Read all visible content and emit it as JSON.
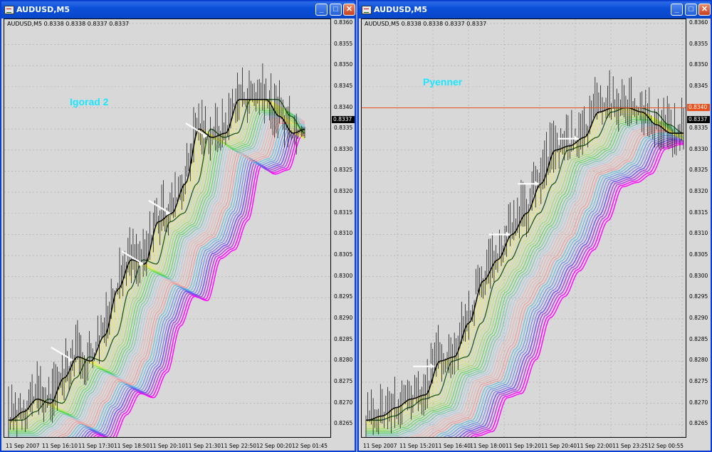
{
  "windows": [
    {
      "title": "AUDUSD,M5",
      "info": "AUDUSD,M5  0.8338 0.8338 0.8337 0.8337",
      "chart_label": "Igorad 2",
      "current_price": "0.8337",
      "y_ticks": [
        "0.8360",
        "0.8355",
        "0.8350",
        "0.8345",
        "0.8340",
        "0.8335",
        "0.8330",
        "0.8325",
        "0.8320",
        "0.8315",
        "0.8310",
        "0.8305",
        "0.8300",
        "0.8295",
        "0.8290",
        "0.8285",
        "0.8280",
        "0.8275",
        "0.8270",
        "0.8265"
      ],
      "x_ticks": [
        "11 Sep 2007",
        "11 Sep 16:10",
        "11 Sep 17:30",
        "11 Sep 18:50",
        "11 Sep 20:10",
        "11 Sep 21:30",
        "11 Sep 22:50",
        "12 Sep 00:20",
        "12 Sep 01:45"
      ]
    },
    {
      "title": "AUDUSD,M5",
      "info": "AUDUSD,M5  0.8338 0.8338 0.8337 0.8337",
      "chart_label": "Pyenner",
      "current_price": "0.8337",
      "level_price": "0.8340",
      "y_ticks": [
        "0.8360",
        "0.8355",
        "0.8350",
        "0.8345",
        "0.8340",
        "0.8335",
        "0.8330",
        "0.8325",
        "0.8320",
        "0.8315",
        "0.8310",
        "0.8305",
        "0.8300",
        "0.8295",
        "0.8290",
        "0.8285",
        "0.8280",
        "0.8275",
        "0.8270",
        "0.8265"
      ],
      "x_ticks": [
        "11 Sep 2007",
        "11 Sep 15:20",
        "11 Sep 16:40",
        "11 Sep 18:00",
        "11 Sep 19:20",
        "11 Sep 20:40",
        "11 Sep 22:00",
        "11 Sep 23:25",
        "12 Sep 00:55"
      ]
    }
  ],
  "chart_data": [
    {
      "type": "line",
      "title": "Igorad 2",
      "symbol": "AUDUSD",
      "timeframe": "M5",
      "ylim": [
        0.8262,
        0.8361
      ],
      "price_points": [
        [
          0,
          0.8266
        ],
        [
          8,
          0.8268
        ],
        [
          16,
          0.8271
        ],
        [
          24,
          0.827
        ],
        [
          32,
          0.8276
        ],
        [
          40,
          0.8281
        ],
        [
          48,
          0.828
        ],
        [
          56,
          0.8286
        ],
        [
          64,
          0.8297
        ],
        [
          72,
          0.8304
        ],
        [
          80,
          0.8303
        ],
        [
          88,
          0.8313
        ],
        [
          96,
          0.8315
        ],
        [
          104,
          0.8322
        ],
        [
          112,
          0.8335
        ],
        [
          120,
          0.8333
        ],
        [
          128,
          0.8334
        ],
        [
          136,
          0.8342
        ],
        [
          144,
          0.8342
        ],
        [
          152,
          0.8342
        ],
        [
          160,
          0.8338
        ],
        [
          168,
          0.8334
        ],
        [
          176,
          0.8335
        ]
      ],
      "ribbon_colors": [
        "#000000",
        "#f0f040",
        "#e6e86a",
        "#c8e860",
        "#90e048",
        "#48d848",
        "#60c8a0",
        "#a8c8e0",
        "#e8b0b0",
        "#f09090",
        "#50b8e0",
        "#5080f0",
        "#7050f0",
        "#b040e0",
        "#ff00ff"
      ],
      "arrow_colors": "#ffffff"
    },
    {
      "type": "line",
      "title": "Pyenner",
      "symbol": "AUDUSD",
      "timeframe": "M5",
      "ylim": [
        0.8262,
        0.8361
      ],
      "hline": 0.834,
      "price_points": [
        [
          0,
          0.8266
        ],
        [
          8,
          0.8267
        ],
        [
          16,
          0.8269
        ],
        [
          24,
          0.8271
        ],
        [
          32,
          0.8272
        ],
        [
          40,
          0.828
        ],
        [
          48,
          0.8281
        ],
        [
          56,
          0.8289
        ],
        [
          64,
          0.8299
        ],
        [
          72,
          0.8304
        ],
        [
          80,
          0.831
        ],
        [
          88,
          0.8315
        ],
        [
          96,
          0.8322
        ],
        [
          104,
          0.833
        ],
        [
          112,
          0.8331
        ],
        [
          120,
          0.8333
        ],
        [
          128,
          0.8339
        ],
        [
          136,
          0.834
        ],
        [
          144,
          0.834
        ],
        [
          152,
          0.8339
        ],
        [
          160,
          0.8336
        ],
        [
          168,
          0.8334
        ],
        [
          176,
          0.8334
        ]
      ],
      "ribbon_colors": [
        "#000000",
        "#f0f040",
        "#e6e86a",
        "#c8e860",
        "#90e048",
        "#48d848",
        "#60c8a0",
        "#a8c8e0",
        "#e8b0b0",
        "#f09090",
        "#50b8e0",
        "#5080f0",
        "#7050f0",
        "#b040e0",
        "#ff00ff"
      ],
      "arrow_colors": "#ffffff"
    }
  ]
}
